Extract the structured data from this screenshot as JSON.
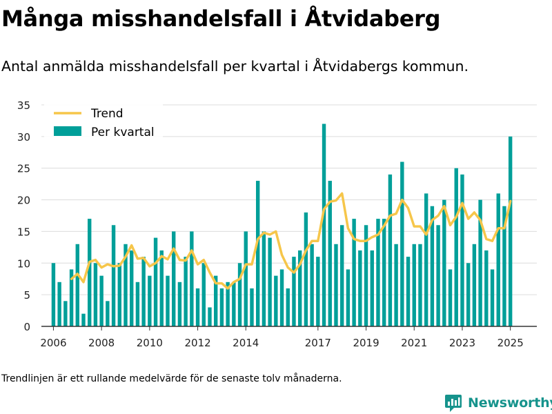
{
  "title": "Många misshandelsfall i Åtvidaberg",
  "subtitle": "Antal anmälda misshandelsfall per kvartal i Åtvidabergs kommun.",
  "footnote": "Trendlinjen är ett rullande medelvärde för de senaste tolv månaderna.",
  "brand": "Newsworthy",
  "colors": {
    "bar": "#009f99",
    "trend": "#f6c64a",
    "grid": "#dcdcdc",
    "axis": "#333333",
    "brand": "#16938c"
  },
  "chart_data": {
    "type": "bar",
    "xlim": [
      2005.5,
      2026.1
    ],
    "ylim": [
      0,
      35
    ],
    "yticks": [
      0,
      5,
      10,
      15,
      20,
      25,
      30,
      35
    ],
    "xticks": [
      {
        "value": 2006.0,
        "label": "2006"
      },
      {
        "value": 2008.0,
        "label": "2008"
      },
      {
        "value": 2010.0,
        "label": "2010"
      },
      {
        "value": 2012.0,
        "label": "2012"
      },
      {
        "value": 2014.0,
        "label": "2014"
      },
      {
        "value": 2017.0,
        "label": "2017"
      },
      {
        "value": 2019.0,
        "label": "2019"
      },
      {
        "value": 2021.0,
        "label": "2021"
      },
      {
        "value": 2023.0,
        "label": "2023"
      },
      {
        "value": 2025.0,
        "label": "2025"
      }
    ],
    "x_start": 2006.0,
    "x_step": 0.25,
    "legend_position": "top-left",
    "series": [
      {
        "name": "Per kvartal",
        "type": "bar",
        "values": [
          10,
          7,
          4,
          9,
          13,
          2,
          17,
          10,
          8,
          4,
          16,
          10,
          13,
          12,
          7,
          11,
          8,
          14,
          12,
          8,
          15,
          7,
          11,
          15,
          6,
          10,
          3,
          8,
          6,
          7,
          7,
          10,
          15,
          6,
          23,
          15,
          14,
          8,
          9,
          6,
          11,
          12,
          18,
          13,
          11,
          32,
          23,
          13,
          16,
          9,
          17,
          12,
          16,
          12,
          17,
          17,
          24,
          13,
          26,
          11,
          13,
          13,
          21,
          19,
          16,
          20,
          9,
          25,
          24,
          10,
          13,
          20,
          12,
          9,
          21,
          19,
          30
        ]
      },
      {
        "name": "Trend",
        "type": "line",
        "x_start": 2006.75,
        "values": [
          7.5,
          8.3,
          7.0,
          10.2,
          10.5,
          9.3,
          9.8,
          9.5,
          9.6,
          11.0,
          12.8,
          10.7,
          10.8,
          9.5,
          10.0,
          11.1,
          10.6,
          12.3,
          10.5,
          10.4,
          12.0,
          9.8,
          10.5,
          8.5,
          6.8,
          6.8,
          6.0,
          7.0,
          7.5,
          9.8,
          9.8,
          13.8,
          14.8,
          14.5,
          15.0,
          11.3,
          9.3,
          8.5,
          9.8,
          12.0,
          13.5,
          13.5,
          18.5,
          19.7,
          19.9,
          21.0,
          15.5,
          13.8,
          13.5,
          13.5,
          14.1,
          14.5,
          15.9,
          17.5,
          17.8,
          20.0,
          18.7,
          15.8,
          15.8,
          14.5,
          16.8,
          17.5,
          19.0,
          16.0,
          17.3,
          19.5,
          17.0,
          18.0,
          16.8,
          13.8,
          13.5,
          15.5,
          15.5,
          19.8
        ]
      }
    ]
  }
}
